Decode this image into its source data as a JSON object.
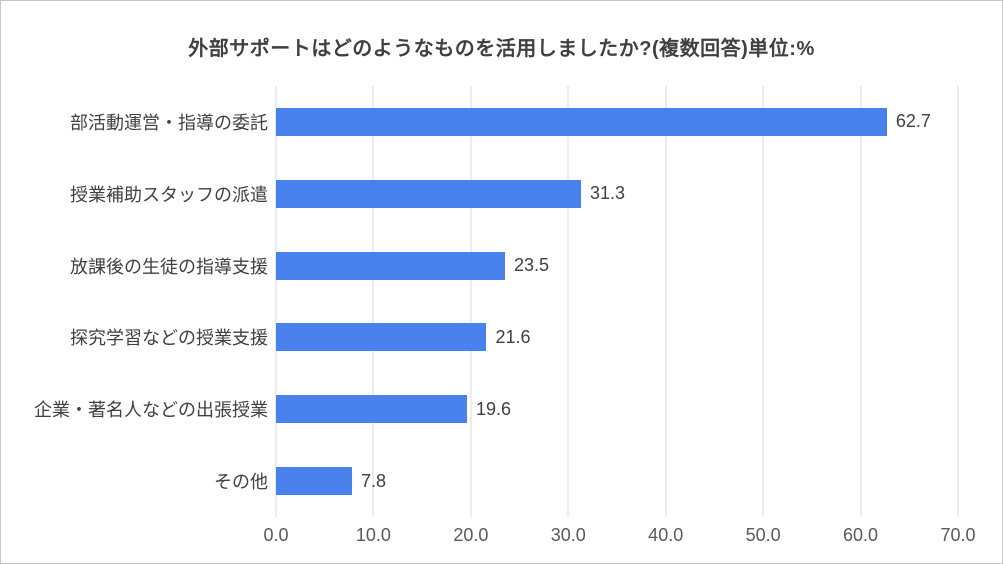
{
  "chart_data": {
    "type": "bar",
    "orientation": "horizontal",
    "title": "外部サポートはどのようなものを活用しましたか?(複数回答)単位:%",
    "categories": [
      "部活動運営・指導の委託",
      "授業補助スタッフの派遣",
      "放課後の生徒の指導支援",
      "探究学習などの授業支援",
      "企業・著名人などの出張授業",
      "その他"
    ],
    "values": [
      62.7,
      31.3,
      23.5,
      21.6,
      19.6,
      7.8
    ],
    "value_labels": [
      "62.7",
      "31.3",
      "23.5",
      "21.6",
      "19.6",
      "7.8"
    ],
    "x_ticks": [
      "0.0",
      "10.0",
      "20.0",
      "30.0",
      "40.0",
      "50.0",
      "60.0",
      "70.0"
    ],
    "xlim": [
      0,
      70
    ],
    "xlabel": "",
    "ylabel": "",
    "grid": "vertical-only",
    "legend": "none"
  },
  "colors": {
    "bar": "#4982ec",
    "title": "#404040",
    "label": "#404040",
    "value": "#404040",
    "tick": "#595959",
    "grid": "#d9d9d9",
    "border": "#c6c6c6"
  }
}
